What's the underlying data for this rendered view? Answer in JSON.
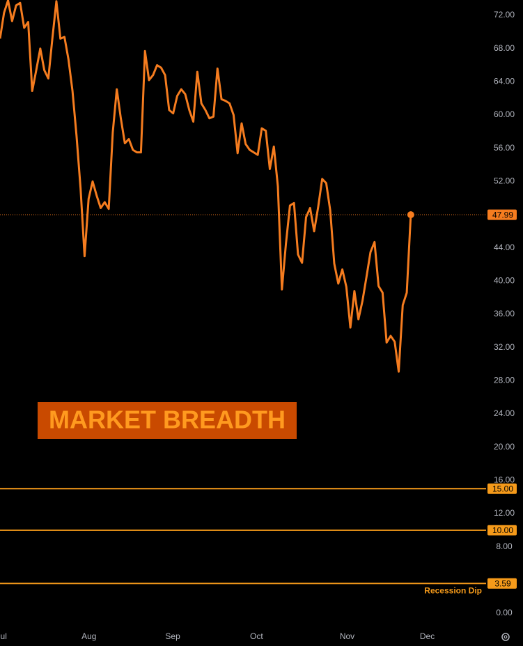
{
  "chart_data": {
    "type": "line",
    "title": "MARKET BREADTH",
    "series": [
      {
        "name": "Market Breadth",
        "color": "#f57c1f",
        "values": [
          69.2,
          72.3,
          73.8,
          71.3,
          73.2,
          73.5,
          70.5,
          71.2,
          62.9,
          65.4,
          68.0,
          65.4,
          64.4,
          69.2,
          73.7,
          69.2,
          69.4,
          66.7,
          62.9,
          57.5,
          51.2,
          43.0,
          49.9,
          52.0,
          50.3,
          48.8,
          49.5,
          48.7,
          57.9,
          63.1,
          59.6,
          56.6,
          57.1,
          55.8,
          55.5,
          55.5,
          67.7,
          64.2,
          64.8,
          66.0,
          65.7,
          64.8,
          60.6,
          60.2,
          62.3,
          63.1,
          62.5,
          60.6,
          59.2,
          65.2,
          61.4,
          60.6,
          59.6,
          59.8,
          65.6,
          61.9,
          61.7,
          61.4,
          60.0,
          55.4,
          59.0,
          56.5,
          55.8,
          55.5,
          55.2,
          58.4,
          58.1,
          53.5,
          56.2,
          51.4,
          39.0,
          44.5,
          49.1,
          49.4,
          43.2,
          42.2,
          47.7,
          48.8,
          46.0,
          48.9,
          52.3,
          51.8,
          48.5,
          42.1,
          39.7,
          41.4,
          39.3,
          34.4,
          38.8,
          35.4,
          37.6,
          40.5,
          43.5,
          44.7,
          39.4,
          38.6,
          32.6,
          33.4,
          32.7,
          29.1,
          37.1,
          38.6,
          47.99
        ]
      }
    ],
    "last_price": {
      "value": 47.99,
      "label": "47.99"
    },
    "levels": [
      {
        "value": 15,
        "label": "15.00",
        "color": "#f59a1a"
      },
      {
        "value": 10,
        "label": "10.00",
        "color": "#f59a1a"
      },
      {
        "value": 3.59,
        "label": "3.59",
        "name": "Recession Dip",
        "color": "#f59a1a"
      }
    ],
    "xlim": [
      0,
      120.7
    ],
    "xticks": [
      {
        "value": 0.9,
        "label": "ul"
      },
      {
        "value": 22.1,
        "label": "Aug"
      },
      {
        "value": 42.9,
        "label": "Sep"
      },
      {
        "value": 63.7,
        "label": "Oct"
      },
      {
        "value": 86.2,
        "label": "Nov"
      },
      {
        "value": 106.1,
        "label": "Dec"
      }
    ],
    "ylim": [
      -1.68,
      73.85
    ],
    "yticks": [
      {
        "value": 0,
        "label": "0.00"
      },
      {
        "value": 8,
        "label": "8.00"
      },
      {
        "value": 12,
        "label": "12.00"
      },
      {
        "value": 16,
        "label": "16.00"
      },
      {
        "value": 20,
        "label": "20.00"
      },
      {
        "value": 24,
        "label": "24.00"
      },
      {
        "value": 28,
        "label": "28.00"
      },
      {
        "value": 32,
        "label": "32.00"
      },
      {
        "value": 36,
        "label": "36.00"
      },
      {
        "value": 40,
        "label": "40.00"
      },
      {
        "value": 44,
        "label": "44.00"
      },
      {
        "value": 52,
        "label": "52.00"
      },
      {
        "value": 56,
        "label": "56.00"
      },
      {
        "value": 60,
        "label": "60.00"
      },
      {
        "value": 64,
        "label": "64.00"
      },
      {
        "value": 68,
        "label": "68.00"
      },
      {
        "value": 72,
        "label": "72.00"
      }
    ],
    "grid": false
  }
}
